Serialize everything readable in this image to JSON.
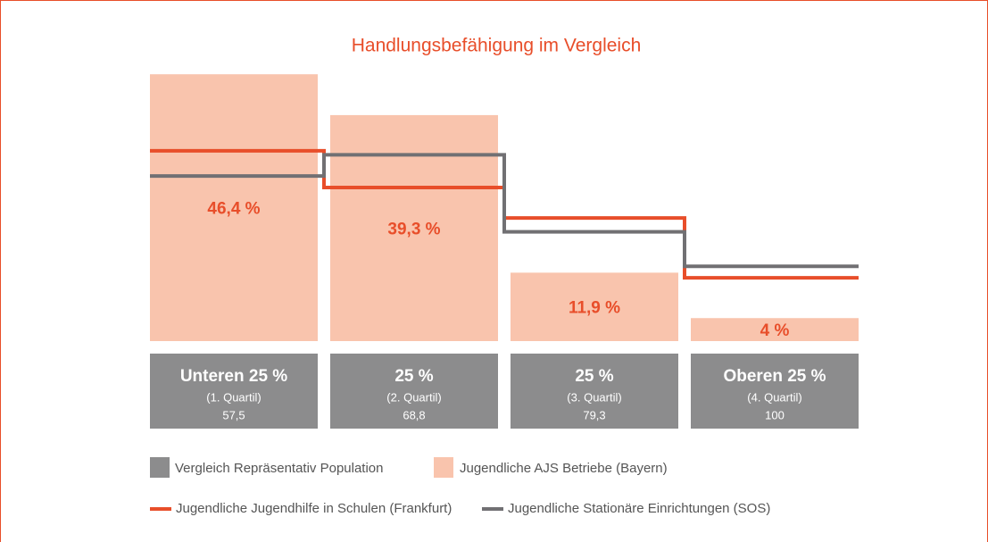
{
  "chart_data": {
    "type": "bar",
    "title": "Handlungsbefähigung im Vergleich",
    "categories": [
      "Unteren 25 %",
      "25 %",
      "25 %",
      "Oberen 25 %"
    ],
    "category_notes": [
      "(1. Quartil)",
      "(2. Quartil)",
      "(3. Quartil)",
      "(4. Quartil)"
    ],
    "category_scores": [
      {
        "value": 57.5,
        "label": "57,5"
      },
      {
        "value": 68.8,
        "label": "68,8"
      },
      {
        "value": 79.3,
        "label": "79,3"
      },
      100
    ],
    "reference": {
      "name": "Vergleich Repräsentativ Population",
      "color": "#8c8c8d"
    },
    "series": [
      {
        "name": "Jugendliche AJS Betriebe (Bayern)",
        "type": "bar",
        "color": "#f9c4ad",
        "values": [
          46.4,
          39.3,
          11.9,
          4
        ],
        "value_labels": [
          "46,4 %",
          "39,3 %",
          "11,9 %",
          "4 %"
        ]
      },
      {
        "name": "Jugendliche Jugendhilfe in Schulen (Frankfurt)",
        "type": "line",
        "color": "#e84e2a",
        "values": [
          33.1,
          26.7,
          21.4,
          11.0
        ]
      },
      {
        "name": "Jugendliche Stationäre Einrichtungen (SOS)",
        "type": "line",
        "color": "#717073",
        "values": [
          28.7,
          32.4,
          19.0,
          13.0
        ]
      }
    ],
    "ylim": [
      0,
      50
    ]
  }
}
